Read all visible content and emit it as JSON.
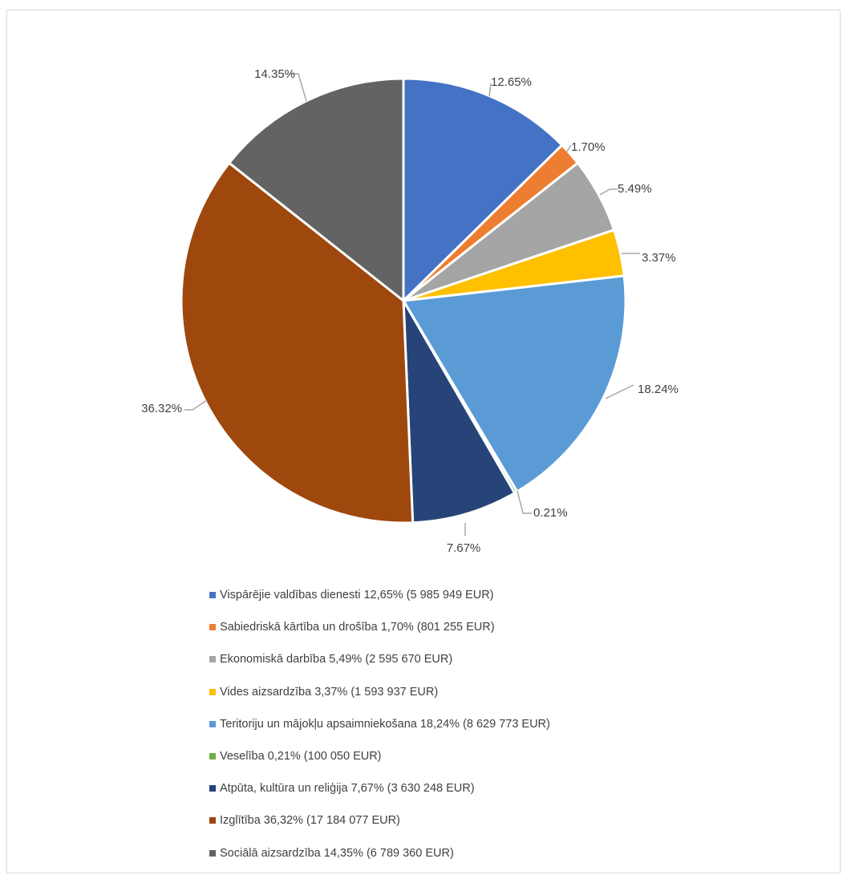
{
  "chart_data": {
    "type": "pie",
    "start_angle": "top, clockwise",
    "slices": [
      {
        "label": "12.65%",
        "value": 12.65,
        "color": "#4472C4",
        "legend": "Vispārējie valdības dienesti 12,65% (5 985 949 EUR)"
      },
      {
        "label": "1.70%",
        "value": 1.7,
        "color": "#ED7D31",
        "legend": "Sabiedriskā kārtība un drošība 1,70% (801 255 EUR)"
      },
      {
        "label": "5.49%",
        "value": 5.49,
        "color": "#A5A5A5",
        "legend": "Ekonomiskā darbība 5,49% (2 595 670 EUR)"
      },
      {
        "label": "3.37%",
        "value": 3.37,
        "color": "#FFC000",
        "legend": "Vides aizsardzība 3,37% (1 593 937 EUR)"
      },
      {
        "label": "18.24%",
        "value": 18.24,
        "color": "#5B9BD5",
        "legend": "Teritoriju un mājokļu apsaimniekošana 18,24% (8 629 773 EUR)"
      },
      {
        "label": "0.21%",
        "value": 0.21,
        "color": "#70AD47",
        "legend": "Veselība 0,21% (100 050 EUR)"
      },
      {
        "label": "7.67%",
        "value": 7.67,
        "color": "#264478",
        "legend": "Atpūta, kultūra un reliģija 7,67% (3 630 248 EUR)"
      },
      {
        "label": "36.32%",
        "value": 36.32,
        "color": "#9E480E",
        "legend": "Izglītība 36,32% (17 184 077 EUR)"
      },
      {
        "label": "14.35%",
        "value": 14.35,
        "color": "#636363",
        "legend": "Sociālā aizsardzība 14,35% (6 789 360 EUR)"
      }
    ],
    "legend_position": "bottom"
  }
}
